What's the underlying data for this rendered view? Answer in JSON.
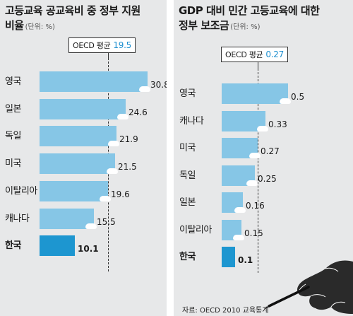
{
  "chart_data": [
    {
      "type": "bar",
      "orientation": "horizontal",
      "title": "고등교육 공교육비 중 정부 지원 비율",
      "unit": "(단위: %)",
      "categories": [
        "영국",
        "일본",
        "독일",
        "미국",
        "이탈리아",
        "캐나다",
        "한국"
      ],
      "values": [
        30.8,
        24.6,
        21.9,
        21.5,
        19.6,
        15.5,
        10.1
      ],
      "value_labels": [
        "30.8",
        "24.6",
        "21.9",
        "21.5",
        "19.6",
        "15.5",
        "10.1"
      ],
      "highlight": "한국",
      "reference_line": {
        "label": "OECD 평균",
        "value": 19.5,
        "value_label": "19.5"
      },
      "xlim": [
        0,
        30.8
      ],
      "grid": false,
      "colors": {
        "bar": "#86c6e6",
        "highlight": "#1d96d0",
        "reference_value": "#1d8fd0"
      }
    },
    {
      "type": "bar",
      "orientation": "horizontal",
      "title": "GDP 대비 민간 고등교육에 대한 정부 보조금",
      "unit": "(단위: %)",
      "categories": [
        "영국",
        "캐나다",
        "미국",
        "독일",
        "일본",
        "이탈리아",
        "한국"
      ],
      "values": [
        0.5,
        0.33,
        0.27,
        0.25,
        0.16,
        0.15,
        0.1
      ],
      "value_labels": [
        "0.5",
        "0.33",
        "0.27",
        "0.25",
        "0.16",
        "0.15",
        "0.1"
      ],
      "highlight": "한국",
      "reference_line": {
        "label": "OECD 평균",
        "value": 0.27,
        "value_label": "0.27"
      },
      "xlim": [
        0,
        0.5
      ],
      "grid": false,
      "colors": {
        "bar": "#86c6e6",
        "highlight": "#1d96d0",
        "reference_value": "#1d8fd0"
      }
    }
  ],
  "left_title_lines": [
    "고등교육 공교육비 중 정부 지원",
    "비율"
  ],
  "right_title_lines": [
    "GDP 대비 민간 고등교육에 대한",
    "정부 보조금"
  ],
  "source": "자료: OECD 2010 교육통계",
  "decorations": {
    "hand_illustration": "hand-writing-with-pen"
  }
}
